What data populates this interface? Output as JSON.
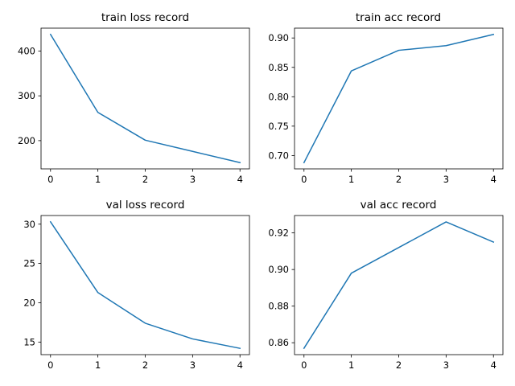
{
  "colors": {
    "series": "#1f77b4",
    "background": "#ffffff",
    "axes": "#000000"
  },
  "chart_data": [
    {
      "type": "line",
      "title": "train loss record",
      "xlabel": "",
      "ylabel": "",
      "x": [
        0,
        1,
        2,
        3,
        4
      ],
      "series": [
        {
          "values": [
            437,
            263,
            201,
            176,
            151
          ]
        }
      ],
      "xlim": [
        -0.2,
        4.2
      ],
      "ylim": [
        137,
        451
      ],
      "xticks": [
        0,
        1,
        2,
        3,
        4
      ],
      "xtick_labels": [
        "0",
        "1",
        "2",
        "3",
        "4"
      ],
      "yticks": [
        200,
        300,
        400
      ],
      "ytick_labels": [
        "200",
        "300",
        "400"
      ],
      "grid": false,
      "legend": "none"
    },
    {
      "type": "line",
      "title": "train acc record",
      "xlabel": "",
      "ylabel": "",
      "x": [
        0,
        1,
        2,
        3,
        4
      ],
      "series": [
        {
          "values": [
            0.688,
            0.844,
            0.879,
            0.887,
            0.906
          ]
        }
      ],
      "xlim": [
        -0.2,
        4.2
      ],
      "ylim": [
        0.6773,
        0.9167
      ],
      "xticks": [
        0,
        1,
        2,
        3,
        4
      ],
      "xtick_labels": [
        "0",
        "1",
        "2",
        "3",
        "4"
      ],
      "yticks": [
        0.7,
        0.75,
        0.8,
        0.85,
        0.9
      ],
      "ytick_labels": [
        "0.70",
        "0.75",
        "0.80",
        "0.85",
        "0.90"
      ],
      "grid": false,
      "legend": "none"
    },
    {
      "type": "line",
      "title": "val loss record",
      "xlabel": "",
      "ylabel": "",
      "x": [
        0,
        1,
        2,
        3,
        4
      ],
      "series": [
        {
          "values": [
            30.3,
            21.3,
            17.4,
            15.4,
            14.2
          ]
        }
      ],
      "xlim": [
        -0.2,
        4.2
      ],
      "ylim": [
        13.4,
        31.1
      ],
      "xticks": [
        0,
        1,
        2,
        3,
        4
      ],
      "xtick_labels": [
        "0",
        "1",
        "2",
        "3",
        "4"
      ],
      "yticks": [
        15,
        20,
        25,
        30
      ],
      "ytick_labels": [
        "15",
        "20",
        "25",
        "30"
      ],
      "grid": false,
      "legend": "none"
    },
    {
      "type": "line",
      "title": "val acc record",
      "xlabel": "",
      "ylabel": "",
      "x": [
        0,
        1,
        2,
        3,
        4
      ],
      "series": [
        {
          "values": [
            0.857,
            0.898,
            0.912,
            0.926,
            0.915
          ]
        }
      ],
      "xlim": [
        -0.2,
        4.2
      ],
      "ylim": [
        0.8535,
        0.9295
      ],
      "xticks": [
        0,
        1,
        2,
        3,
        4
      ],
      "xtick_labels": [
        "0",
        "1",
        "2",
        "3",
        "4"
      ],
      "yticks": [
        0.86,
        0.88,
        0.9,
        0.92
      ],
      "ytick_labels": [
        "0.86",
        "0.88",
        "0.90",
        "0.92"
      ],
      "grid": false,
      "legend": "none"
    }
  ]
}
